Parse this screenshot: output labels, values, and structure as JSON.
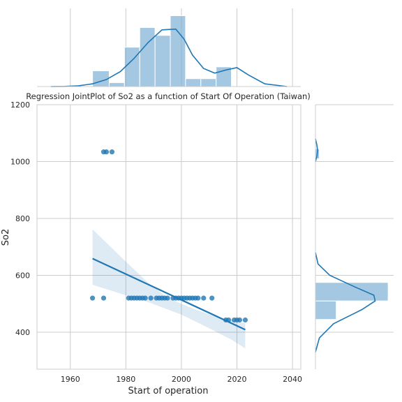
{
  "chart_data": {
    "type": "scatter",
    "title": "Regression JointPlot of So2 as a function of Start Of Operation (Taiwan)",
    "xlabel": "Start of operation",
    "ylabel": "So2",
    "xlim": [
      1948,
      2043
    ],
    "ylim": [
      270,
      1200
    ],
    "xticks": [
      1960,
      1980,
      2000,
      2020,
      2040
    ],
    "yticks": [
      400,
      600,
      800,
      1000,
      1200
    ],
    "grid": true,
    "colors": {
      "points": "#1f77b4",
      "band": "#1f77b4",
      "hist": "#7fb0d6"
    },
    "points": [
      [
        1968,
        520
      ],
      [
        1972,
        520
      ],
      [
        1972,
        1034
      ],
      [
        1973,
        1034
      ],
      [
        1975,
        1034
      ],
      [
        1981,
        520
      ],
      [
        1982,
        520
      ],
      [
        1983,
        520
      ],
      [
        1984,
        520
      ],
      [
        1985,
        520
      ],
      [
        1986,
        520
      ],
      [
        1987,
        520
      ],
      [
        1989,
        520
      ],
      [
        1991,
        520
      ],
      [
        1992,
        520
      ],
      [
        1993,
        520
      ],
      [
        1994,
        520
      ],
      [
        1995,
        520
      ],
      [
        1997,
        520
      ],
      [
        1998,
        520
      ],
      [
        1999,
        520
      ],
      [
        2000,
        520
      ],
      [
        2001,
        520
      ],
      [
        2002,
        520
      ],
      [
        2003,
        520
      ],
      [
        2004,
        520
      ],
      [
        2005,
        520
      ],
      [
        2006,
        520
      ],
      [
        2008,
        520
      ],
      [
        2011,
        520
      ],
      [
        2016,
        443
      ],
      [
        2017,
        443
      ],
      [
        2019,
        443
      ],
      [
        2020,
        443
      ],
      [
        2021,
        443
      ],
      [
        2023,
        443
      ]
    ],
    "regression": {
      "x": [
        1968,
        2023
      ],
      "y": [
        659,
        409
      ]
    },
    "confidence_band": {
      "x": [
        1968,
        1978,
        1988,
        1995,
        2000,
        2005,
        2012,
        2018,
        2023
      ],
      "upper": [
        762,
        667,
        574,
        522,
        500,
        480,
        456,
        440,
        432
      ],
      "lower": [
        567,
        536,
        506,
        480,
        462,
        438,
        404,
        374,
        343
      ]
    },
    "x_histogram": {
      "bins": [
        1968,
        1974,
        1979.5,
        1985,
        1990.5,
        1996,
        2001.5,
        2007,
        2012.5,
        2018,
        2023.5
      ],
      "counts": [
        2,
        0.5,
        5,
        7.5,
        6.5,
        9,
        1,
        1,
        2.5,
        0
      ]
    },
    "x_kde": {
      "x": [
        1953,
        1958,
        1963,
        1968,
        1973,
        1978,
        1983,
        1988,
        1993,
        1998,
        2001,
        2004,
        2008,
        2012,
        2016,
        2020,
        2024,
        2030,
        2038
      ],
      "y": [
        0,
        0.02,
        0.1,
        0.35,
        0.9,
        1.9,
        3.6,
        5.6,
        7.2,
        7.3,
        6.0,
        4.0,
        2.3,
        1.7,
        2.1,
        2.4,
        1.5,
        0.35,
        0
      ]
    },
    "y_histogram": {
      "bins": [
        445,
        510,
        575,
        1010,
        1045
      ],
      "counts": [
        0.8,
        2.8,
        0,
        0.15
      ],
      "note_bins": "horizontal"
    },
    "y_kde": {
      "y": [
        330,
        380,
        430,
        480,
        510,
        530,
        560,
        600,
        640,
        680,
        1000,
        1020,
        1040,
        1060,
        1080
      ],
      "x": [
        0,
        0.15,
        0.7,
        1.8,
        2.3,
        2.25,
        1.5,
        0.55,
        0.1,
        0,
        0,
        0.06,
        0.08,
        0.05,
        0
      ]
    }
  }
}
